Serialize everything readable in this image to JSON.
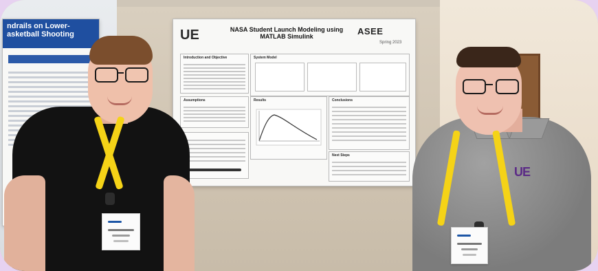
{
  "image": {
    "left_poster": {
      "title_lines": [
        "ndrails on Lower-",
        "asketball Shooting"
      ]
    },
    "main_poster": {
      "logo_left": "UE",
      "title_lines": [
        "NASA Student Launch Modeling using",
        "MATLAB Simulink"
      ],
      "asee_logo": "ASEE",
      "asee_sub": "Spring 2023",
      "sections": {
        "intro": "Introduction and Objective",
        "system_model": "System Model",
        "assumptions": "Assumptions",
        "results": "Results",
        "conclusions": "Conclusions",
        "next_steps": "Next Steps"
      }
    },
    "right_shirt_logo": "UE"
  }
}
